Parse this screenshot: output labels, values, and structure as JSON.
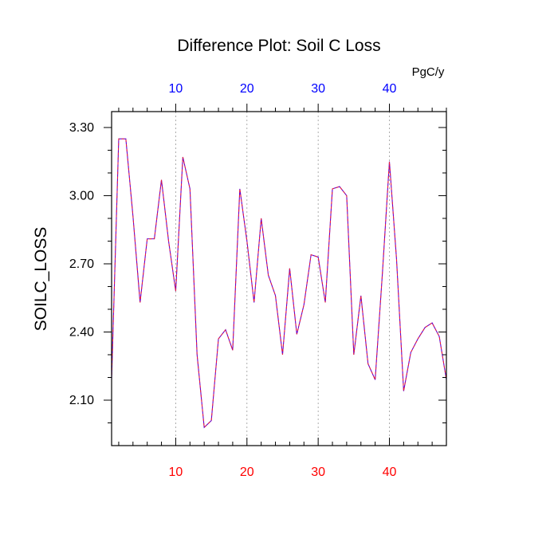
{
  "chart_data": {
    "type": "line",
    "title": "Difference Plot: Soil C Loss",
    "ylabel": "SOILC_LOSS",
    "top_axis_units": "PgC/y",
    "xlim": [
      1,
      48
    ],
    "ylim": [
      1.9,
      3.37
    ],
    "x_ticks": [
      10,
      20,
      30,
      40
    ],
    "x_tick_labels": [
      "10",
      "20",
      "30",
      "40"
    ],
    "y_ticks": [
      2.1,
      2.4,
      2.7,
      3.0,
      3.3
    ],
    "y_tick_labels": [
      "2.10",
      "2.40",
      "2.70",
      "3.00",
      "3.30"
    ],
    "grid": "vertical-dashed",
    "colors": {
      "line": "#6600cc",
      "line_dash": "#ff2020",
      "top_tick_labels": "#0000ff",
      "bottom_tick_labels": "#ff0000",
      "axis": "#000000",
      "grid": "#999999"
    },
    "series": [
      {
        "x": [
          1,
          2,
          3,
          4,
          5,
          6,
          7,
          8,
          9,
          10,
          11,
          12,
          13,
          14,
          15,
          16,
          17,
          18,
          19,
          20,
          21,
          22,
          23,
          24,
          25,
          26,
          27,
          28,
          29,
          30,
          31,
          32,
          33,
          34,
          35,
          36,
          37,
          38,
          39,
          40,
          41,
          42,
          43,
          44,
          45,
          46,
          47,
          48
        ],
        "values": [
          2.19,
          3.25,
          3.25,
          2.91,
          2.53,
          2.81,
          2.81,
          3.07,
          2.8,
          2.58,
          3.17,
          3.03,
          2.3,
          1.98,
          2.01,
          2.37,
          2.41,
          2.32,
          3.03,
          2.8,
          2.53,
          2.9,
          2.65,
          2.56,
          2.3,
          2.68,
          2.39,
          2.52,
          2.74,
          2.73,
          2.53,
          3.03,
          3.04,
          3.0,
          2.3,
          2.56,
          2.26,
          2.19,
          2.65,
          3.15,
          2.72,
          2.14,
          2.31,
          2.37,
          2.42,
          2.44,
          2.38,
          2.19
        ]
      }
    ]
  }
}
